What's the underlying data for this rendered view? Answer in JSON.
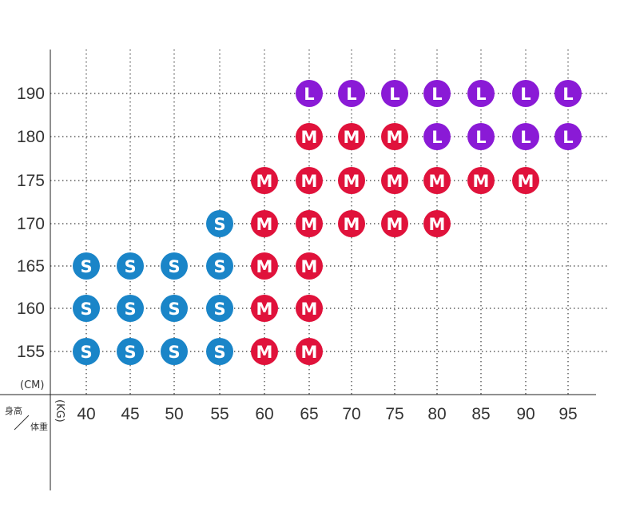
{
  "chart_data": {
    "type": "scatter",
    "title": "",
    "x_unit": "(KG)",
    "y_unit": "(CM)",
    "corner_label": {
      "top": "身高",
      "bottom": "体重"
    },
    "x_ticks": [
      40,
      45,
      50,
      55,
      60,
      65,
      70,
      75,
      80,
      85,
      90,
      95
    ],
    "y_ticks": [
      155,
      160,
      165,
      170,
      175,
      180,
      190
    ],
    "grid": true,
    "colors": {
      "S": "#1a85c8",
      "M": "#e0123b",
      "L": "#8a1ad6"
    },
    "points": [
      {
        "height": 190,
        "weight": 65,
        "size": "L"
      },
      {
        "height": 190,
        "weight": 70,
        "size": "L"
      },
      {
        "height": 190,
        "weight": 75,
        "size": "L"
      },
      {
        "height": 190,
        "weight": 80,
        "size": "L"
      },
      {
        "height": 190,
        "weight": 85,
        "size": "L"
      },
      {
        "height": 190,
        "weight": 90,
        "size": "L"
      },
      {
        "height": 190,
        "weight": 95,
        "size": "L"
      },
      {
        "height": 180,
        "weight": 65,
        "size": "M"
      },
      {
        "height": 180,
        "weight": 70,
        "size": "M"
      },
      {
        "height": 180,
        "weight": 75,
        "size": "M"
      },
      {
        "height": 180,
        "weight": 80,
        "size": "L"
      },
      {
        "height": 180,
        "weight": 85,
        "size": "L"
      },
      {
        "height": 180,
        "weight": 90,
        "size": "L"
      },
      {
        "height": 180,
        "weight": 95,
        "size": "L"
      },
      {
        "height": 175,
        "weight": 60,
        "size": "M"
      },
      {
        "height": 175,
        "weight": 65,
        "size": "M"
      },
      {
        "height": 175,
        "weight": 70,
        "size": "M"
      },
      {
        "height": 175,
        "weight": 75,
        "size": "M"
      },
      {
        "height": 175,
        "weight": 80,
        "size": "M"
      },
      {
        "height": 175,
        "weight": 85,
        "size": "M"
      },
      {
        "height": 175,
        "weight": 90,
        "size": "M"
      },
      {
        "height": 170,
        "weight": 55,
        "size": "S"
      },
      {
        "height": 170,
        "weight": 60,
        "size": "M"
      },
      {
        "height": 170,
        "weight": 65,
        "size": "M"
      },
      {
        "height": 170,
        "weight": 70,
        "size": "M"
      },
      {
        "height": 170,
        "weight": 75,
        "size": "M"
      },
      {
        "height": 170,
        "weight": 80,
        "size": "M"
      },
      {
        "height": 165,
        "weight": 40,
        "size": "S"
      },
      {
        "height": 165,
        "weight": 45,
        "size": "S"
      },
      {
        "height": 165,
        "weight": 50,
        "size": "S"
      },
      {
        "height": 165,
        "weight": 55,
        "size": "S"
      },
      {
        "height": 165,
        "weight": 60,
        "size": "M"
      },
      {
        "height": 165,
        "weight": 65,
        "size": "M"
      },
      {
        "height": 160,
        "weight": 40,
        "size": "S"
      },
      {
        "height": 160,
        "weight": 45,
        "size": "S"
      },
      {
        "height": 160,
        "weight": 50,
        "size": "S"
      },
      {
        "height": 160,
        "weight": 55,
        "size": "S"
      },
      {
        "height": 160,
        "weight": 60,
        "size": "M"
      },
      {
        "height": 160,
        "weight": 65,
        "size": "M"
      },
      {
        "height": 155,
        "weight": 40,
        "size": "S"
      },
      {
        "height": 155,
        "weight": 45,
        "size": "S"
      },
      {
        "height": 155,
        "weight": 50,
        "size": "S"
      },
      {
        "height": 155,
        "weight": 55,
        "size": "S"
      },
      {
        "height": 155,
        "weight": 60,
        "size": "M"
      },
      {
        "height": 155,
        "weight": 65,
        "size": "M"
      }
    ]
  }
}
